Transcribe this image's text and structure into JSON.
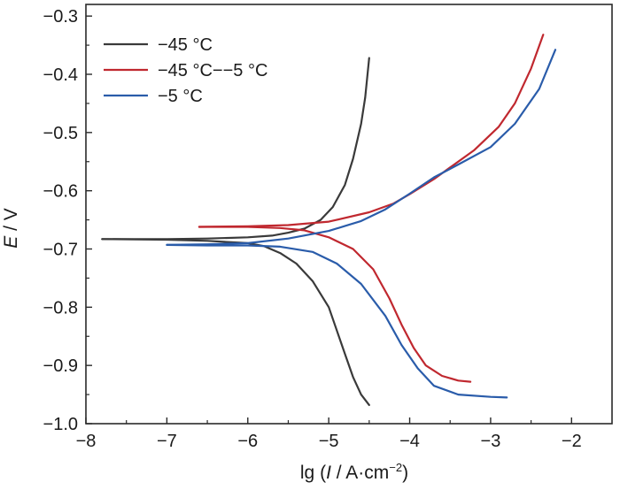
{
  "chart_data": {
    "type": "line",
    "title": "",
    "xlabel": {
      "prefix": "lg (",
      "italic": "I",
      "mid": " / A·cm",
      "sup": "−2",
      "suffix": ")"
    },
    "ylabel": {
      "italic": "E",
      "suffix": " / V"
    },
    "xlim": [
      -8,
      -1.5
    ],
    "ylim": [
      -1.0,
      -0.28
    ],
    "x_ticks": [
      -8,
      -7,
      -6,
      -5,
      -4,
      -3,
      -2
    ],
    "x_tick_labels": [
      "−8",
      "−7",
      "−6",
      "−5",
      "−4",
      "−3",
      "−2"
    ],
    "y_ticks": [
      -1.0,
      -0.9,
      -0.8,
      -0.7,
      -0.6,
      -0.5,
      -0.4,
      -0.3
    ],
    "y_tick_labels": [
      "−1.0",
      "−0.9",
      "−0.8",
      "−0.7",
      "−0.6",
      "−0.5",
      "−0.4",
      "−0.3"
    ],
    "grid": false,
    "legend_position": "top-left",
    "series": [
      {
        "name": "−45 °C",
        "color": "#3a3a3a",
        "branches": [
          [
            [
              -7.8,
              -0.683
            ],
            [
              -7.0,
              -0.683
            ],
            [
              -6.5,
              -0.682
            ],
            [
              -6.0,
              -0.68
            ],
            [
              -5.7,
              -0.677
            ],
            [
              -5.5,
              -0.672
            ],
            [
              -5.3,
              -0.665
            ],
            [
              -5.1,
              -0.65
            ],
            [
              -4.95,
              -0.628
            ],
            [
              -4.8,
              -0.59
            ],
            [
              -4.7,
              -0.545
            ],
            [
              -4.6,
              -0.485
            ],
            [
              -4.55,
              -0.44
            ],
            [
              -4.5,
              -0.372
            ]
          ],
          [
            [
              -7.8,
              -0.683
            ],
            [
              -7.0,
              -0.684
            ],
            [
              -6.5,
              -0.686
            ],
            [
              -6.0,
              -0.69
            ],
            [
              -5.8,
              -0.695
            ],
            [
              -5.6,
              -0.707
            ],
            [
              -5.4,
              -0.725
            ],
            [
              -5.2,
              -0.755
            ],
            [
              -5.0,
              -0.8
            ],
            [
              -4.9,
              -0.84
            ],
            [
              -4.8,
              -0.88
            ],
            [
              -4.7,
              -0.92
            ],
            [
              -4.6,
              -0.95
            ],
            [
              -4.5,
              -0.968
            ]
          ]
        ]
      },
      {
        "name": "−45 °C−−5 °C",
        "color": "#c0282f",
        "branches": [
          [
            [
              -6.6,
              -0.662
            ],
            [
              -6.0,
              -0.661
            ],
            [
              -5.5,
              -0.659
            ],
            [
              -5.0,
              -0.653
            ],
            [
              -4.5,
              -0.637
            ],
            [
              -4.2,
              -0.622
            ],
            [
              -4.0,
              -0.606
            ],
            [
              -3.7,
              -0.58
            ],
            [
              -3.5,
              -0.56
            ],
            [
              -3.2,
              -0.53
            ],
            [
              -2.9,
              -0.49
            ],
            [
              -2.7,
              -0.45
            ],
            [
              -2.5,
              -0.39
            ],
            [
              -2.35,
              -0.332
            ]
          ],
          [
            [
              -6.6,
              -0.662
            ],
            [
              -6.0,
              -0.662
            ],
            [
              -5.6,
              -0.664
            ],
            [
              -5.3,
              -0.668
            ],
            [
              -5.0,
              -0.68
            ],
            [
              -4.7,
              -0.7
            ],
            [
              -4.45,
              -0.735
            ],
            [
              -4.25,
              -0.785
            ],
            [
              -4.1,
              -0.83
            ],
            [
              -3.95,
              -0.87
            ],
            [
              -3.8,
              -0.9
            ],
            [
              -3.6,
              -0.918
            ],
            [
              -3.4,
              -0.926
            ],
            [
              -3.25,
              -0.928
            ]
          ]
        ]
      },
      {
        "name": "−5 °C",
        "color": "#2a5caa",
        "branches": [
          [
            [
              -7.0,
              -0.693
            ],
            [
              -6.5,
              -0.692
            ],
            [
              -6.0,
              -0.69
            ],
            [
              -5.5,
              -0.682
            ],
            [
              -5.0,
              -0.669
            ],
            [
              -4.6,
              -0.652
            ],
            [
              -4.3,
              -0.632
            ],
            [
              -4.0,
              -0.605
            ],
            [
              -3.7,
              -0.577
            ],
            [
              -3.4,
              -0.555
            ],
            [
              -3.0,
              -0.525
            ],
            [
              -2.7,
              -0.485
            ],
            [
              -2.4,
              -0.425
            ],
            [
              -2.2,
              -0.358
            ]
          ],
          [
            [
              -7.0,
              -0.693
            ],
            [
              -6.5,
              -0.694
            ],
            [
              -6.0,
              -0.694
            ],
            [
              -5.6,
              -0.696
            ],
            [
              -5.2,
              -0.705
            ],
            [
              -4.9,
              -0.725
            ],
            [
              -4.6,
              -0.76
            ],
            [
              -4.3,
              -0.815
            ],
            [
              -4.1,
              -0.865
            ],
            [
              -3.9,
              -0.905
            ],
            [
              -3.7,
              -0.935
            ],
            [
              -3.4,
              -0.95
            ],
            [
              -3.0,
              -0.954
            ],
            [
              -2.8,
              -0.955
            ]
          ]
        ]
      }
    ]
  }
}
